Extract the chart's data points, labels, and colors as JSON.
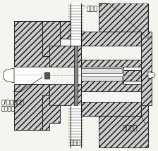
{
  "background_color": "#f5f5f0",
  "label_water_out": "水出口",
  "label_water_in": "水入口",
  "label_sprue": "スプルー",
  "label_washer": "銅/アスベスト\nワッシャ",
  "line_color": "#111111",
  "hatch_pattern": "////",
  "fig_width": 2.24,
  "fig_height": 2.15,
  "dpi": 100
}
